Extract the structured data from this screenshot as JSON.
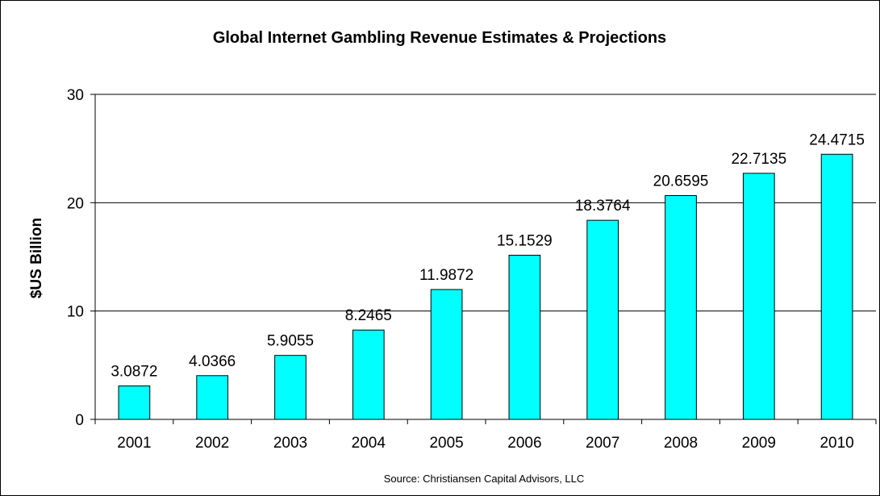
{
  "chart_data": {
    "type": "bar",
    "title": "Global Internet Gambling Revenue Estimates & Projections",
    "ylabel": "$US Billion",
    "xlabel": "",
    "source": "Source: Christiansen Capital Advisors, LLC",
    "categories": [
      "2001",
      "2002",
      "2003",
      "2004",
      "2005",
      "2006",
      "2007",
      "2008",
      "2009",
      "2010"
    ],
    "values": [
      3.0872,
      4.0366,
      5.9055,
      8.2465,
      11.9872,
      15.1529,
      18.3764,
      20.6595,
      22.7135,
      24.4715
    ],
    "data_labels": [
      "3.0872",
      "4.0366",
      "5.9055",
      "8.2465",
      "11.9872",
      "15.1529",
      "18.3764",
      "20.6595",
      "22.7135",
      "24.4715"
    ],
    "ylim": [
      0,
      30
    ],
    "yticks": [
      0,
      10,
      20,
      30
    ],
    "ytick_labels": [
      "0",
      "10",
      "20",
      "30"
    ],
    "grid": true,
    "legend": "none",
    "colors": {
      "bar_fill": "#00FFFF",
      "bar_stroke": "#000000",
      "gridline": "#000000",
      "axis": "#000000"
    }
  }
}
